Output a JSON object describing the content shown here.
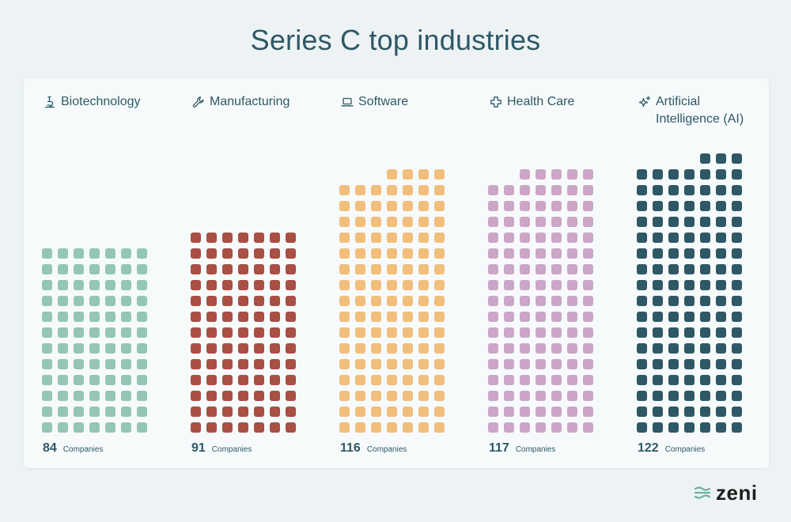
{
  "chart_data": {
    "type": "waffle",
    "title": "Series C top industries",
    "unit_label": "Companies",
    "columns_per_category": 7,
    "categories": [
      {
        "name": "Biotechnology",
        "value": 84,
        "color": "#93c6b6",
        "icon": "microscope-icon"
      },
      {
        "name": "Manufacturing",
        "value": 91,
        "color": "#a94f44",
        "icon": "wrench-icon"
      },
      {
        "name": "Software",
        "value": 116,
        "color": "#f1be7c",
        "icon": "laptop-icon"
      },
      {
        "name": "Health Care",
        "value": 117,
        "color": "#cca6c6",
        "icon": "medical-cross-icon"
      },
      {
        "name": "Artificial Intelligence (AI)",
        "value": 122,
        "color": "#2f5866",
        "icon": "sparkles-icon"
      }
    ]
  },
  "brand": {
    "name": "zeni",
    "color": "#6fb1a2"
  }
}
